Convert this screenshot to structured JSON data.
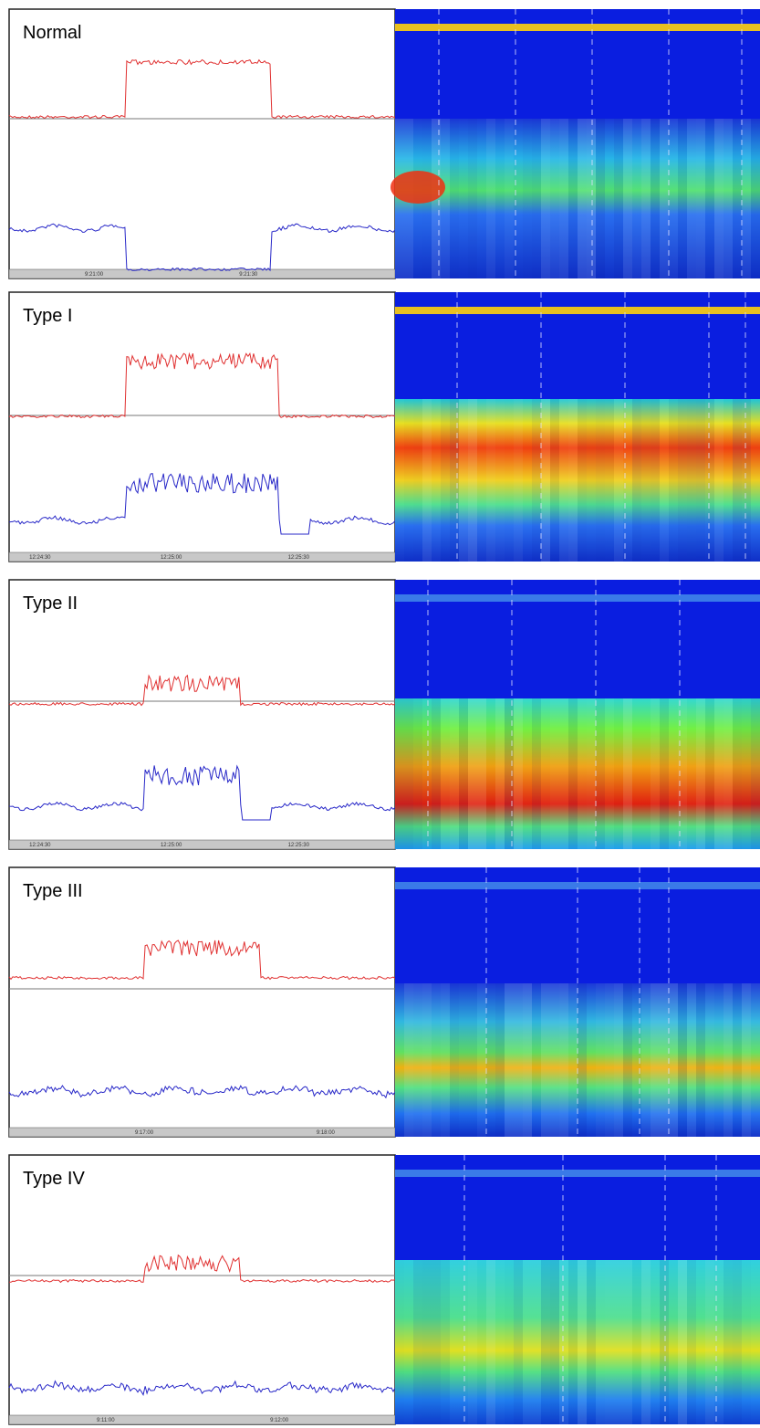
{
  "panels": [
    {
      "label": "Normal",
      "time_labels": [
        "9:21:00",
        "9:21:30"
      ]
    },
    {
      "label": "Type I",
      "time_labels": [
        "12:24:30",
        "12:25:00",
        "12:25:30"
      ]
    },
    {
      "label": "Type II",
      "time_labels": [
        "12:24:30",
        "12:25:00",
        "12:25:30"
      ]
    },
    {
      "label": "Type III",
      "time_labels": [
        "9:17:00",
        "9:18:00"
      ]
    },
    {
      "label": "Type IV",
      "time_labels": [
        "9:11:00",
        "9:12:00"
      ]
    }
  ]
}
